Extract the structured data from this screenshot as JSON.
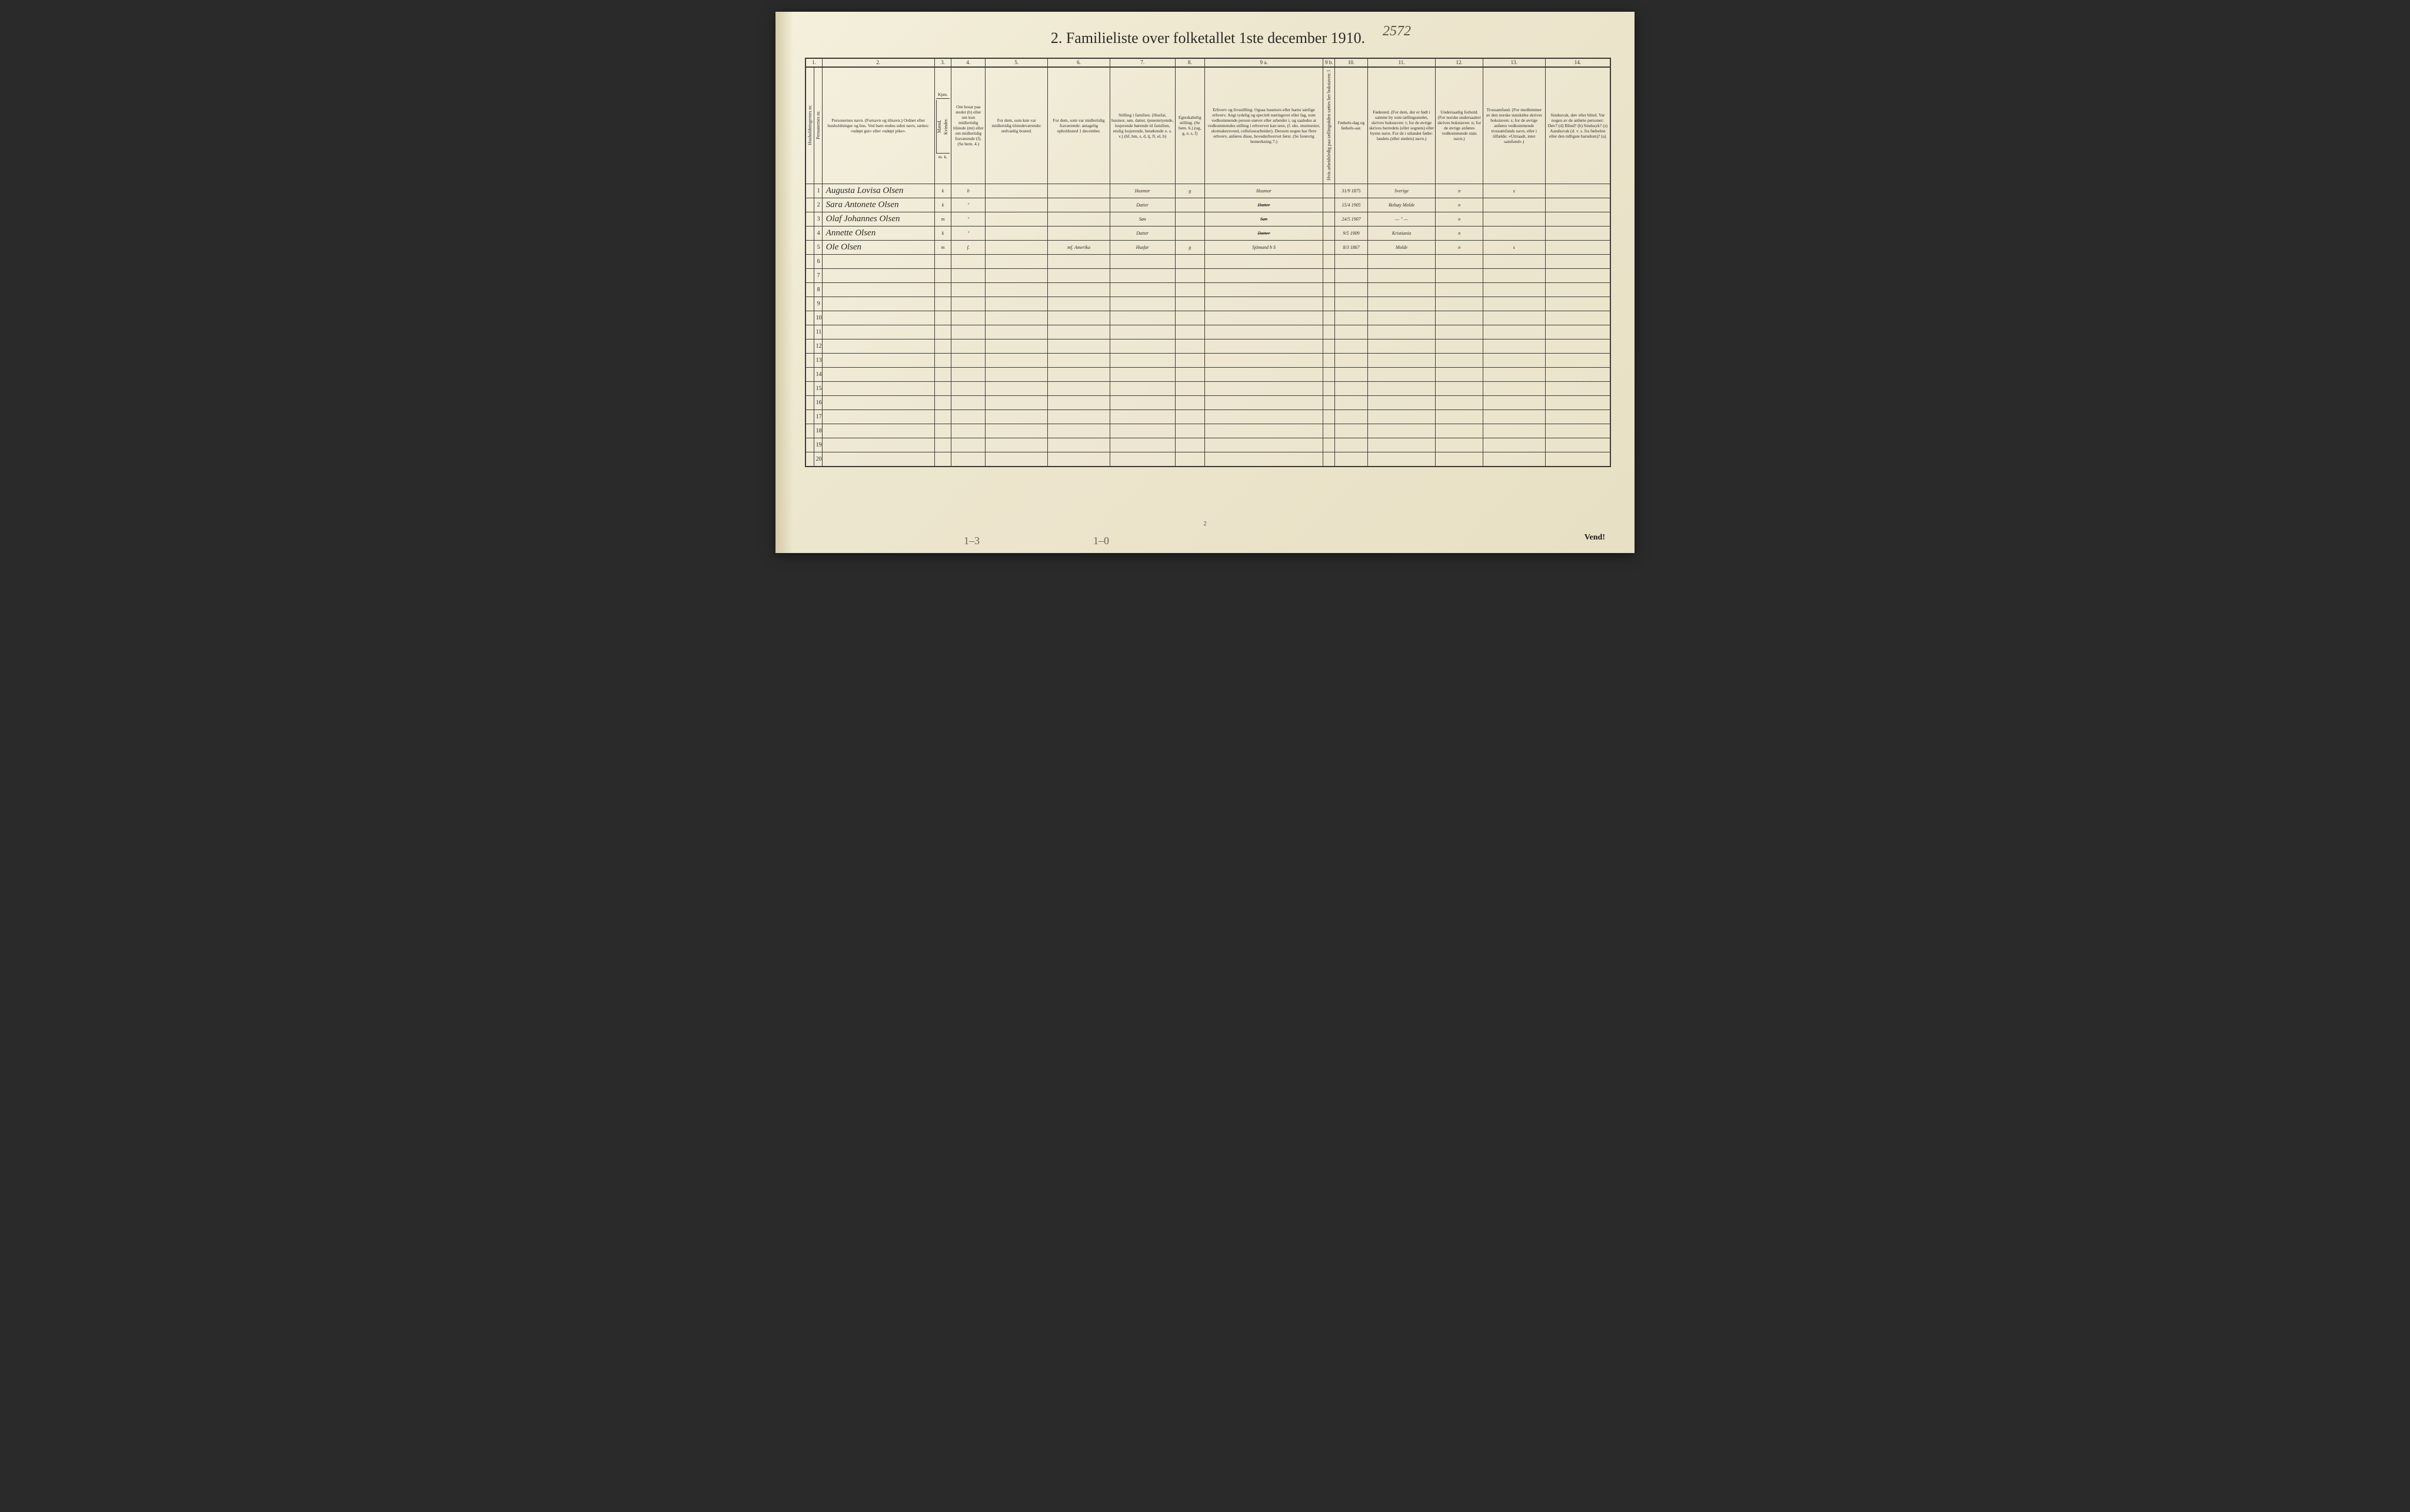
{
  "handwritten_top": "2572",
  "title": "2.  Familieliste over folketallet 1ste december 1910.",
  "column_numbers": [
    "1.",
    "",
    "2.",
    "3.",
    "4.",
    "5.",
    "6.",
    "7.",
    "8.",
    "9 a.",
    "9 b.",
    "10.",
    "11.",
    "12.",
    "13.",
    "14."
  ],
  "headers": {
    "c1a": "Husholdningernes nr.",
    "c1b": "Personernes nr.",
    "c2": "Personernes navn.\n(Fornavn og tilnavn.)\nOrdnet efter husholdninger og hus.\nVed barn endnu uden navn, sættes: «udøpt gut» eller «udøpt pike».",
    "c3_top": "Kjøn.",
    "c3a": "Mænd.",
    "c3b": "Kvinder.",
    "c4": "Om bosat paa stedet (b) eller om kun midlertidig tilstede (mt) eller om midlertidig fraværende (f).\n(Se bem. 4.)",
    "c5": "For dem, som kun var midlertidig tilstedeværende:\nsedvanlig bosted.",
    "c6": "For dem, som var midlertidig fraværende:\nantagelig opholdssted 1 december.",
    "c7": "Stilling i familien.\n(Husfar, husmor, søn, datter, tjenestetyende, losjerende hørende til familien, enslig losjerende, besøkende o. s. v.)\n(hf, hm, s, d, tj, fl, el, b)",
    "c8": "Egteskabelig stilling.\n(Se bem. 6.)\n(ug, g, e, s, f)",
    "c9a": "Erhverv og livsstilling.\nOgsaa husmors eller barns særlige erhverv.\nAngi tydelig og specielt næringsvei eller fag, som vedkommende person utøver eller arbeider i, og saaledes at vedkommendes stilling i erhvervet kan sees, (f. eks. murmester, skomakersvend, cellulosearbeider). Dersom nogen har flere erhverv, anføres disse, hovederhvervet først.\n(Se forøvrig bemerkning 7.)",
    "c9b": "Hvis arbeidsledig paa tællingstiden sættes her bokstaven: l",
    "c10": "Fødsels-dag og fødsels-aar.",
    "c11": "Fødested.\n(For dem, der er født i samme by som tællingsstedet, skrives bokstaven: t; for de øvrige skrives herredets (eller sognets) eller byens navn.\nFor de i utlandet fødte: landets (eller stedets) navn.)",
    "c12": "Undersaatlig forhold.\n(For norske undersaatter skrives bokstaven: n; for de øvrige anføres vedkommende stats navn.)",
    "c13": "Trossamfund.\n(For medlemmer av den norske statskirke skrives bokstaven: s; for de øvrige anføres vedkommende trossamfunds navn, eller i tilfælde: «Uttraadt, intet samfund».)",
    "c14": "Sindssvak, døv eller blind.\nVar nogen av de anførte personer:\nDøv?     (d)\nBlind?   (b)\nSindssyk? (s)\nAandssvak (d. v. s. fra fødselen eller den tidligste barndom)? (a)",
    "mk": "m.  k."
  },
  "rows": [
    {
      "n": "1",
      "name": "Augusta Lovisa Olsen",
      "sex": "k",
      "c4": "b",
      "c5": "",
      "c6": "",
      "c7": "Husmor",
      "c8": "g",
      "c9a": "Husmor",
      "c10": "31/9 1875",
      "c11": "Sverige",
      "c12": "n",
      "c13": "s",
      "c14": ""
    },
    {
      "n": "2",
      "name": "Sara Antonete Olsen",
      "sex": "k",
      "c4": "\"",
      "c5": "",
      "c6": "",
      "c7": "Datter",
      "c8": "",
      "c9a": "Datter",
      "c9a_struck": true,
      "c10": "15/4 1905",
      "c11": "Bolsøy Molde",
      "c12": "n",
      "c13": "",
      "c14": ""
    },
    {
      "n": "3",
      "name": "Olaf Johannes Olsen",
      "sex": "m",
      "c4": "\"",
      "c5": "",
      "c6": "",
      "c7": "Søn",
      "c8": "",
      "c9a": "Søn",
      "c9a_struck": true,
      "c10": "24/5 1907",
      "c11": "— \" —",
      "c12": "n",
      "c13": "",
      "c14": ""
    },
    {
      "n": "4",
      "name": "Annette Olsen",
      "sex": "k",
      "c4": "\"",
      "c5": "",
      "c6": "",
      "c7": "Datter",
      "c8": "",
      "c9a": "Datter",
      "c9a_struck": true,
      "c10": "9/5 1909",
      "c11": "Kristiania",
      "c12": "n",
      "c13": "",
      "c14": ""
    },
    {
      "n": "5",
      "name": "Ole Olsen",
      "sex": "m",
      "c4": "f.",
      "c5": "",
      "c6": "mf. Amerika",
      "c7": "Husfar",
      "c8": "g",
      "c9a": "Sjömand  h S",
      "c10": "8/3 1867",
      "c11": "Molde",
      "c12": "n",
      "c13": "s",
      "c14": ""
    }
  ],
  "empty_rows": [
    "6",
    "7",
    "8",
    "9",
    "10",
    "11",
    "12",
    "13",
    "14",
    "15",
    "16",
    "17",
    "18",
    "19",
    "20"
  ],
  "footer_note": "Vend!",
  "page_num": "2",
  "scribble_left": "1–3",
  "scribble_mid": "1–0",
  "colwidths": {
    "c1a": 14,
    "c1b": 14,
    "c2": 190,
    "c3": 28,
    "c4": 58,
    "c5": 105,
    "c6": 105,
    "c7": 110,
    "c8": 50,
    "c9a": 200,
    "c9b": 20,
    "c10": 55,
    "c11": 115,
    "c12": 80,
    "c13": 105,
    "c14": 110
  },
  "colors": {
    "paper": "#ede6ce",
    "ink": "#2a2a2a",
    "pencil": "#5a5040"
  }
}
